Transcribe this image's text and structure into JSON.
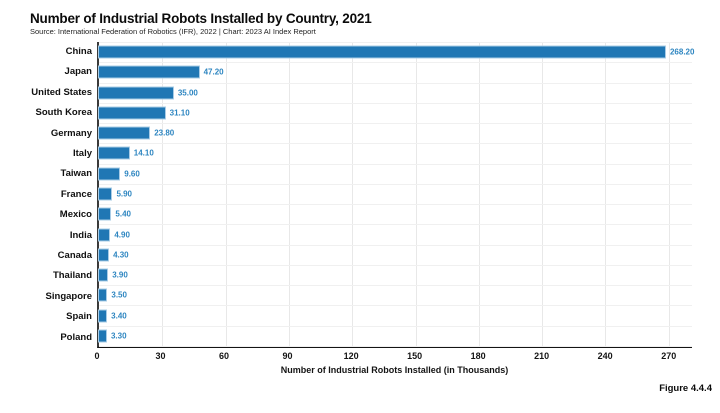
{
  "title": "Number of Industrial Robots Installed by Country, 2021",
  "subtitle": "Source: International Federation of Robotics (IFR), 2022 | Chart: 2023 AI Index Report",
  "figure_label": "Figure 4.4.4",
  "colors": {
    "bar_fill": "#2077B4",
    "bar_outline": "#A9CCE6",
    "value_label": "#2E86C1",
    "gridline": "#E8E8E8",
    "axis": "#141414",
    "background": "#FFFFFF"
  },
  "chart_data": {
    "type": "bar",
    "orientation": "horizontal",
    "title": "Number of Industrial Robots Installed by Country, 2021",
    "categories": [
      "China",
      "Japan",
      "United States",
      "South Korea",
      "Germany",
      "Italy",
      "Taiwan",
      "France",
      "Mexico",
      "India",
      "Canada",
      "Thailand",
      "Singapore",
      "Spain",
      "Poland"
    ],
    "values": [
      268.2,
      47.2,
      35.0,
      31.1,
      23.8,
      14.1,
      9.6,
      5.9,
      5.4,
      4.9,
      4.3,
      3.9,
      3.5,
      3.4,
      3.3
    ],
    "value_labels": [
      "268.20",
      "47.20",
      "35.00",
      "31.10",
      "23.80",
      "14.10",
      "9.60",
      "5.90",
      "5.40",
      "4.90",
      "4.30",
      "3.90",
      "3.50",
      "3.40",
      "3.30"
    ],
    "xlabel": "Number of Industrial Robots Installed (in Thousands)",
    "ylabel": "",
    "x_ticks": [
      0,
      30,
      60,
      90,
      120,
      150,
      180,
      210,
      240,
      270
    ],
    "xlim": [
      0,
      281
    ],
    "grid": true,
    "legend_position": "none"
  }
}
